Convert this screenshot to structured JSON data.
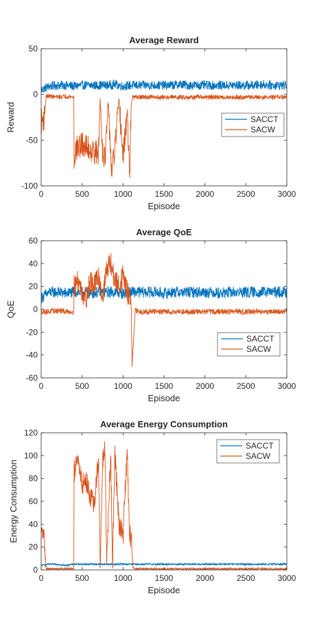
{
  "chart_data": [
    {
      "type": "line",
      "title": "Average Reward",
      "xlabel": "Episode",
      "ylabel": "Reward",
      "xlim": [
        0,
        3000
      ],
      "ylim": [
        -100,
        50
      ],
      "xticks": [
        0,
        500,
        1000,
        1500,
        2000,
        2500,
        3000
      ],
      "yticks": [
        -100,
        -50,
        0,
        50
      ],
      "legend_position": "right",
      "series": [
        {
          "name": "SACCT",
          "color": "#0072BD",
          "x": [
            0,
            100,
            200,
            300,
            400,
            500,
            600,
            700,
            800,
            900,
            1000,
            1100,
            1200,
            1300,
            1400,
            1500,
            1600,
            1700,
            1800,
            1900,
            2000,
            2100,
            2200,
            2300,
            2400,
            2500,
            2600,
            2700,
            2800,
            2900,
            3000
          ],
          "values": [
            5,
            9,
            10,
            10,
            9,
            10,
            10,
            10,
            10,
            11,
            9,
            10,
            10,
            10,
            10,
            10,
            10,
            11,
            10,
            10,
            10,
            10,
            10,
            10,
            10,
            10,
            10,
            11,
            10,
            10,
            10
          ]
        },
        {
          "name": "SACW",
          "color": "#D95319",
          "x": [
            0,
            40,
            60,
            100,
            200,
            300,
            399,
            400,
            420,
            500,
            600,
            700,
            720,
            750,
            780,
            820,
            860,
            900,
            950,
            1000,
            1050,
            1080,
            1100,
            1120,
            1150,
            1200,
            1300,
            1400,
            1500,
            1600,
            1700,
            1800,
            1900,
            2000,
            2100,
            2200,
            2300,
            2400,
            2500,
            2600,
            2700,
            2800,
            2900,
            3000
          ],
          "values": [
            -30,
            -25,
            -2,
            -2,
            -3,
            -2,
            -3,
            -75,
            -60,
            -55,
            -60,
            -65,
            -5,
            -60,
            -70,
            -10,
            -85,
            -60,
            -5,
            -70,
            -20,
            -90,
            -10,
            -3,
            -3,
            -3,
            -3,
            -3,
            -3,
            -3,
            -3,
            -3,
            -3,
            -3,
            -3,
            -3,
            -3,
            -3,
            -3,
            -3,
            -3,
            -3,
            -3,
            -3
          ]
        }
      ]
    },
    {
      "type": "line",
      "title": "Average QoE",
      "xlabel": "Episode",
      "ylabel": "QoE",
      "xlim": [
        0,
        3000
      ],
      "ylim": [
        -60,
        60
      ],
      "xticks": [
        0,
        500,
        1000,
        1500,
        2000,
        2500,
        3000
      ],
      "yticks": [
        -60,
        -40,
        -20,
        0,
        20,
        40,
        60
      ],
      "legend_position": "lower-right",
      "series": [
        {
          "name": "SACCT",
          "color": "#0072BD",
          "x": [
            0,
            100,
            200,
            300,
            400,
            500,
            600,
            700,
            800,
            900,
            1000,
            1100,
            1200,
            1300,
            1400,
            1500,
            1600,
            1700,
            1800,
            1900,
            2000,
            2100,
            2200,
            2300,
            2400,
            2500,
            2600,
            2700,
            2800,
            2900,
            3000
          ],
          "values": [
            10,
            15,
            15,
            14,
            15,
            15,
            14,
            15,
            15,
            15,
            14,
            15,
            15,
            15,
            15,
            14,
            15,
            15,
            15,
            15,
            15,
            15,
            14,
            15,
            15,
            15,
            15,
            15,
            15,
            15,
            15
          ]
        },
        {
          "name": "SACW",
          "color": "#D95319",
          "x": [
            0,
            100,
            200,
            300,
            399,
            400,
            450,
            500,
            550,
            600,
            650,
            700,
            750,
            800,
            850,
            900,
            950,
            1000,
            1050,
            1080,
            1100,
            1110,
            1150,
            1200,
            1300,
            1400,
            1500,
            1600,
            1700,
            1800,
            1900,
            2000,
            2100,
            2200,
            2300,
            2400,
            2500,
            2600,
            2700,
            2800,
            2900,
            3000
          ],
          "values": [
            -2,
            -2,
            -1,
            -2,
            -2,
            20,
            25,
            15,
            10,
            25,
            20,
            30,
            10,
            35,
            40,
            25,
            20,
            30,
            15,
            10,
            5,
            -50,
            -1,
            -2,
            -2,
            -2,
            -2,
            -2,
            -2,
            -2,
            -2,
            -2,
            -2,
            -2,
            -2,
            -2,
            -2,
            -2,
            -2,
            -2,
            -2,
            -2
          ]
        }
      ]
    },
    {
      "type": "line",
      "title": "Average Energy Consumption",
      "xlabel": "Episode",
      "ylabel": "Energy Consumption",
      "xlim": [
        0,
        3000
      ],
      "ylim": [
        0,
        120
      ],
      "xticks": [
        0,
        500,
        1000,
        1500,
        2000,
        2500,
        3000
      ],
      "yticks": [
        0,
        20,
        40,
        60,
        80,
        100,
        120
      ],
      "legend_position": "top-right",
      "series": [
        {
          "name": "SACCT",
          "color": "#0072BD",
          "x": [
            0,
            100,
            200,
            300,
            400,
            500,
            600,
            700,
            800,
            900,
            1000,
            1100,
            1200,
            1300,
            1400,
            1500,
            1600,
            1700,
            1800,
            1900,
            2000,
            2100,
            2200,
            2300,
            2400,
            2500,
            2600,
            2700,
            2800,
            2900,
            3000
          ],
          "values": [
            4,
            5,
            5,
            4,
            5,
            5,
            5,
            5,
            5,
            5,
            5,
            5,
            5,
            5,
            5,
            5,
            5,
            5,
            5,
            5,
            5,
            5,
            5,
            5,
            5,
            5,
            5,
            5,
            5,
            5,
            5
          ]
        },
        {
          "name": "SACW",
          "color": "#D95319",
          "x": [
            0,
            20,
            40,
            60,
            100,
            200,
            300,
            399,
            400,
            450,
            500,
            550,
            600,
            650,
            700,
            720,
            750,
            780,
            800,
            850,
            870,
            900,
            950,
            1000,
            1050,
            1080,
            1100,
            1120,
            1150,
            1200,
            1300,
            1400,
            1500,
            1600,
            1700,
            1800,
            1900,
            2000,
            2100,
            2200,
            2300,
            2400,
            2500,
            2600,
            2700,
            2800,
            2900,
            3000
          ],
          "values": [
            30,
            33,
            25,
            1,
            1,
            1,
            1,
            1,
            85,
            95,
            75,
            78,
            65,
            55,
            100,
            2,
            95,
            105,
            3,
            104,
            2,
            105,
            40,
            30,
            105,
            32,
            28,
            2,
            1,
            1,
            1,
            1,
            1,
            1,
            1,
            1,
            1,
            1,
            1,
            1,
            1,
            1,
            1,
            1,
            1,
            1,
            1,
            1
          ]
        }
      ]
    }
  ]
}
